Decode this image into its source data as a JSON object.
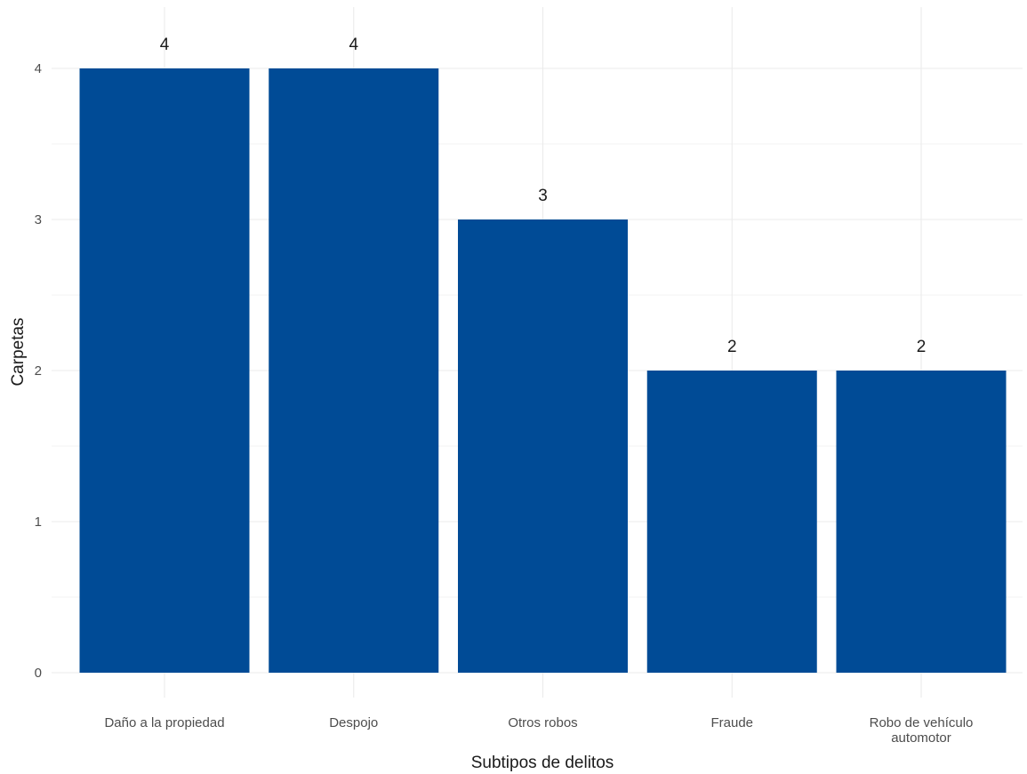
{
  "chart_data": {
    "type": "bar",
    "categories": [
      "Daño a la propiedad",
      "Despojo",
      "Otros robos",
      "Fraude",
      "Robo de vehículo automotor"
    ],
    "category_label_lines": [
      [
        "Daño a la propiedad"
      ],
      [
        "Despojo"
      ],
      [
        "Otros robos"
      ],
      [
        "Fraude"
      ],
      [
        "Robo de vehículo",
        "automotor"
      ]
    ],
    "values": [
      4,
      4,
      3,
      2,
      2
    ],
    "data_labels": [
      "4",
      "4",
      "3",
      "2",
      "2"
    ],
    "xlabel": "Subtipos de delitos",
    "ylabel": "Carpetas",
    "ylim": [
      0,
      4.2
    ],
    "yticks": [
      0,
      1,
      2,
      3,
      4
    ],
    "ytick_labels": [
      "0",
      "1",
      "2",
      "3",
      "4"
    ],
    "grid": true,
    "legend": "none",
    "colors": {
      "bar": "#004b96",
      "grid_major": "#ebebeb",
      "grid_minor": "#f3f3f3"
    }
  }
}
